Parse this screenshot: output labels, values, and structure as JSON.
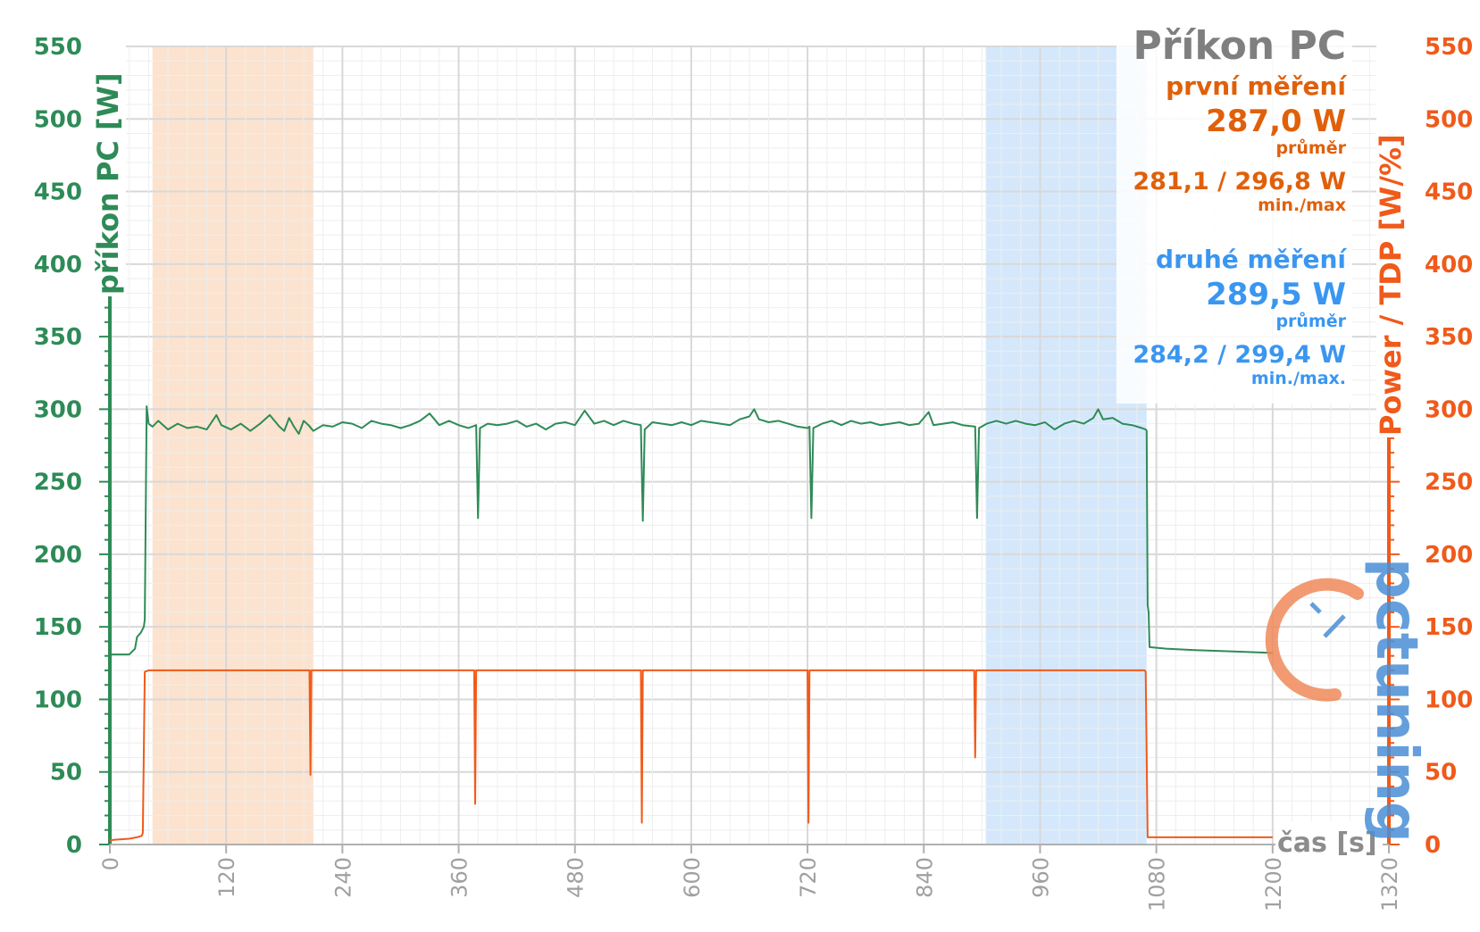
{
  "chart_data": {
    "type": "line",
    "title": "Příkon PC",
    "xlabel": "čas [s]",
    "ylabel_left": "příkon PC [W]",
    "ylabel_right": "Power / TDP [W/%]",
    "xlim": [
      0,
      1320
    ],
    "ylim_left": [
      0,
      550
    ],
    "ylim_right": [
      0,
      550
    ],
    "x_ticks": [
      "0",
      "120",
      "240",
      "360",
      "480",
      "600",
      "720",
      "840",
      "960",
      "1080",
      "1200",
      "1320"
    ],
    "y_ticks": [
      "0",
      "50",
      "100",
      "150",
      "200",
      "250",
      "300",
      "350",
      "400",
      "450",
      "500",
      "550"
    ],
    "grid": true,
    "shaded_regions": [
      {
        "x0": 44,
        "x1": 210,
        "color": "#fbe3cf"
      },
      {
        "x0": 904,
        "x1": 1070,
        "color": "#d5e8fb"
      }
    ],
    "series": [
      {
        "name": "příkon PC",
        "axis": "left",
        "color": "#2e8b57",
        "points": [
          [
            0,
            131
          ],
          [
            20,
            131
          ],
          [
            26,
            135
          ],
          [
            28,
            143
          ],
          [
            32,
            146
          ],
          [
            35,
            150
          ],
          [
            36,
            155
          ],
          [
            38,
            302
          ],
          [
            40,
            290
          ],
          [
            44,
            288
          ],
          [
            50,
            292
          ],
          [
            60,
            286
          ],
          [
            70,
            290
          ],
          [
            80,
            287
          ],
          [
            90,
            288
          ],
          [
            100,
            286
          ],
          [
            110,
            296
          ],
          [
            115,
            289
          ],
          [
            125,
            286
          ],
          [
            135,
            290
          ],
          [
            145,
            285
          ],
          [
            155,
            290
          ],
          [
            165,
            296
          ],
          [
            175,
            288
          ],
          [
            180,
            285
          ],
          [
            185,
            294
          ],
          [
            190,
            288
          ],
          [
            195,
            283
          ],
          [
            200,
            292
          ],
          [
            205,
            289
          ],
          [
            210,
            285
          ],
          [
            220,
            289
          ],
          [
            230,
            288
          ],
          [
            240,
            291
          ],
          [
            250,
            290
          ],
          [
            260,
            287
          ],
          [
            270,
            292
          ],
          [
            280,
            290
          ],
          [
            290,
            289
          ],
          [
            300,
            287
          ],
          [
            310,
            289
          ],
          [
            320,
            292
          ],
          [
            330,
            297
          ],
          [
            340,
            289
          ],
          [
            350,
            292
          ],
          [
            360,
            289
          ],
          [
            370,
            287
          ],
          [
            378,
            289
          ],
          [
            380,
            225
          ],
          [
            382,
            287
          ],
          [
            390,
            290
          ],
          [
            400,
            289
          ],
          [
            410,
            290
          ],
          [
            420,
            292
          ],
          [
            430,
            288
          ],
          [
            440,
            290
          ],
          [
            450,
            286
          ],
          [
            460,
            290
          ],
          [
            470,
            291
          ],
          [
            480,
            289
          ],
          [
            490,
            299
          ],
          [
            500,
            290
          ],
          [
            510,
            292
          ],
          [
            520,
            289
          ],
          [
            530,
            292
          ],
          [
            540,
            290
          ],
          [
            548,
            289
          ],
          [
            550,
            223
          ],
          [
            552,
            286
          ],
          [
            560,
            291
          ],
          [
            570,
            290
          ],
          [
            580,
            289
          ],
          [
            590,
            291
          ],
          [
            600,
            289
          ],
          [
            610,
            292
          ],
          [
            620,
            291
          ],
          [
            630,
            290
          ],
          [
            640,
            289
          ],
          [
            650,
            293
          ],
          [
            660,
            295
          ],
          [
            665,
            300
          ],
          [
            670,
            293
          ],
          [
            680,
            291
          ],
          [
            690,
            292
          ],
          [
            700,
            290
          ],
          [
            710,
            288
          ],
          [
            720,
            287
          ],
          [
            722,
            288
          ],
          [
            724,
            225
          ],
          [
            726,
            287
          ],
          [
            735,
            290
          ],
          [
            745,
            292
          ],
          [
            755,
            289
          ],
          [
            765,
            292
          ],
          [
            775,
            290
          ],
          [
            785,
            291
          ],
          [
            795,
            289
          ],
          [
            805,
            290
          ],
          [
            815,
            291
          ],
          [
            825,
            289
          ],
          [
            835,
            290
          ],
          [
            845,
            298
          ],
          [
            850,
            289
          ],
          [
            860,
            290
          ],
          [
            870,
            291
          ],
          [
            880,
            289
          ],
          [
            893,
            288
          ],
          [
            895,
            225
          ],
          [
            897,
            287
          ],
          [
            905,
            290
          ],
          [
            915,
            292
          ],
          [
            925,
            290
          ],
          [
            935,
            292
          ],
          [
            945,
            290
          ],
          [
            955,
            289
          ],
          [
            965,
            291
          ],
          [
            975,
            286
          ],
          [
            985,
            290
          ],
          [
            995,
            292
          ],
          [
            1005,
            290
          ],
          [
            1015,
            294
          ],
          [
            1020,
            300
          ],
          [
            1025,
            293
          ],
          [
            1035,
            294
          ],
          [
            1045,
            290
          ],
          [
            1055,
            289
          ],
          [
            1065,
            287
          ],
          [
            1069,
            286
          ],
          [
            1070,
            285
          ],
          [
            1071,
            165
          ],
          [
            1072,
            160
          ],
          [
            1073,
            136
          ],
          [
            1090,
            135
          ],
          [
            1120,
            134
          ],
          [
            1160,
            133
          ],
          [
            1200,
            132
          ]
        ]
      },
      {
        "name": "Power / TDP",
        "axis": "right",
        "color": "#f05a1a",
        "points": [
          [
            0,
            3
          ],
          [
            20,
            4
          ],
          [
            28,
            5
          ],
          [
            33,
            6
          ],
          [
            34,
            8
          ],
          [
            36,
            119
          ],
          [
            40,
            120
          ],
          [
            60,
            120
          ],
          [
            80,
            120
          ],
          [
            100,
            120
          ],
          [
            120,
            120
          ],
          [
            140,
            120
          ],
          [
            160,
            120
          ],
          [
            180,
            120
          ],
          [
            200,
            120
          ],
          [
            206,
            120
          ],
          [
            207,
            48
          ],
          [
            208,
            120
          ],
          [
            240,
            120
          ],
          [
            280,
            120
          ],
          [
            320,
            120
          ],
          [
            360,
            120
          ],
          [
            376,
            120
          ],
          [
            377,
            28
          ],
          [
            378,
            120
          ],
          [
            400,
            120
          ],
          [
            440,
            120
          ],
          [
            480,
            120
          ],
          [
            520,
            120
          ],
          [
            548,
            120
          ],
          [
            549,
            15
          ],
          [
            550,
            120
          ],
          [
            580,
            120
          ],
          [
            620,
            120
          ],
          [
            660,
            120
          ],
          [
            700,
            120
          ],
          [
            720,
            120
          ],
          [
            721,
            15
          ],
          [
            722,
            120
          ],
          [
            760,
            120
          ],
          [
            800,
            120
          ],
          [
            840,
            120
          ],
          [
            880,
            120
          ],
          [
            892,
            120
          ],
          [
            893,
            60
          ],
          [
            894,
            120
          ],
          [
            920,
            120
          ],
          [
            960,
            120
          ],
          [
            1000,
            120
          ],
          [
            1040,
            120
          ],
          [
            1068,
            120
          ],
          [
            1069,
            119
          ],
          [
            1071,
            5
          ],
          [
            1100,
            5
          ],
          [
            1140,
            5
          ],
          [
            1200,
            5
          ]
        ]
      }
    ],
    "annotations": {
      "run1_label": "první měření",
      "run1_avg": "287,0 W",
      "run1_avg_label": "průměr",
      "run1_minmax": "281,1 / 296,8 W",
      "run1_minmax_label": "min./max",
      "run2_label": "druhé měření",
      "run2_avg": "289,5 W",
      "run2_avg_label": "průměr",
      "run2_minmax": "284,2 / 299,4 W",
      "run2_minmax_label": "min./max."
    }
  },
  "watermark": {
    "text": "pctuning",
    "color": "#4a8fd6",
    "accent": "#f08a5a"
  }
}
